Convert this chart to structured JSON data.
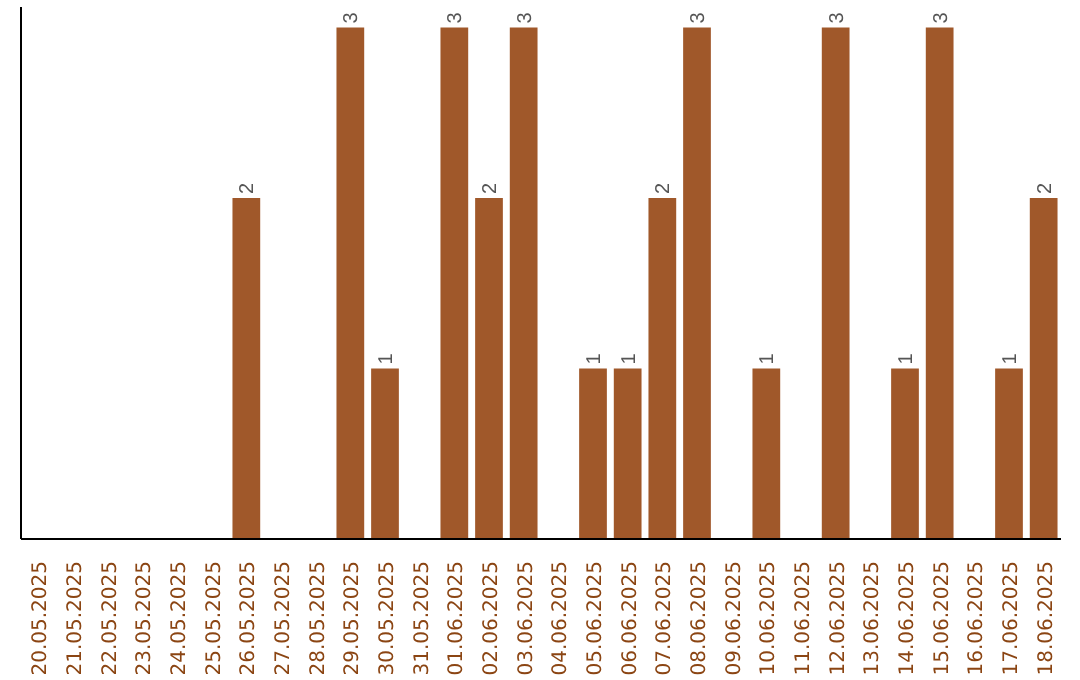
{
  "chart_data": {
    "type": "bar",
    "categories": [
      "20.05.2025",
      "21.05.2025",
      "22.05.2025",
      "23.05.2025",
      "24.05.2025",
      "25.05.2025",
      "26.05.2025",
      "27.05.2025",
      "28.05.2025",
      "29.05.2025",
      "30.05.2025",
      "31.05.2025",
      "01.06.2025",
      "02.06.2025",
      "03.06.2025",
      "04.06.2025",
      "05.06.2025",
      "06.06.2025",
      "07.06.2025",
      "08.06.2025",
      "09.06.2025",
      "10.06.2025",
      "11.06.2025",
      "12.06.2025",
      "13.06.2025",
      "14.06.2025",
      "15.06.2025",
      "16.06.2025",
      "17.06.2025",
      "18.06.2025"
    ],
    "values": [
      0,
      0,
      0,
      0,
      0,
      0,
      2,
      0,
      0,
      3,
      1,
      0,
      3,
      2,
      3,
      0,
      1,
      1,
      2,
      3,
      0,
      1,
      0,
      3,
      0,
      1,
      3,
      0,
      1,
      2
    ],
    "value_labels": [
      null,
      null,
      null,
      null,
      null,
      null,
      "2",
      null,
      null,
      "3",
      "1",
      null,
      "3",
      "2",
      "3",
      null,
      "1",
      "1",
      "2",
      "3",
      null,
      "1",
      null,
      "3",
      null,
      "1",
      "3",
      null,
      "1",
      "2"
    ],
    "color": "#a0582a"
  }
}
